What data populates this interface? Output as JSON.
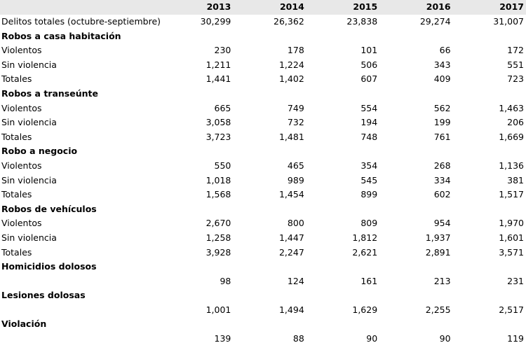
{
  "header": {
    "years": [
      "2013",
      "2014",
      "2015",
      "2016",
      "2017"
    ]
  },
  "rows": [
    {
      "type": "data",
      "label": "Delitos totales (octubre-septiembre)",
      "values": [
        "30,299",
        "26,362",
        "23,838",
        "29,274",
        "31,007"
      ]
    },
    {
      "type": "section",
      "label": "Robos a casa habitación"
    },
    {
      "type": "data",
      "label": "Violentos",
      "values": [
        "230",
        "178",
        "101",
        "66",
        "172"
      ]
    },
    {
      "type": "data",
      "label": "Sin violencia",
      "values": [
        "1,211",
        "1,224",
        "506",
        "343",
        "551"
      ]
    },
    {
      "type": "data",
      "label": "Totales",
      "values": [
        "1,441",
        "1,402",
        "607",
        "409",
        "723"
      ]
    },
    {
      "type": "section",
      "label": "Robos a transeúnte"
    },
    {
      "type": "data",
      "label": "Violentos",
      "values": [
        "665",
        "749",
        "554",
        "562",
        "1,463"
      ]
    },
    {
      "type": "data",
      "label": "Sin violencia",
      "values": [
        "3,058",
        "732",
        "194",
        "199",
        "206"
      ]
    },
    {
      "type": "data",
      "label": "Totales",
      "values": [
        "3,723",
        "1,481",
        "748",
        "761",
        "1,669"
      ]
    },
    {
      "type": "section",
      "label": "Robo a negocio"
    },
    {
      "type": "data",
      "label": "Violentos",
      "values": [
        "550",
        "465",
        "354",
        "268",
        "1,136"
      ]
    },
    {
      "type": "data",
      "label": "Sin violencia",
      "values": [
        "1,018",
        "989",
        "545",
        "334",
        "381"
      ]
    },
    {
      "type": "data",
      "label": "Totales",
      "values": [
        "1,568",
        "1,454",
        "899",
        "602",
        "1,517"
      ]
    },
    {
      "type": "section",
      "label": "Robos de vehículos"
    },
    {
      "type": "data",
      "label": "Violentos",
      "values": [
        "2,670",
        "800",
        "809",
        "954",
        "1,970"
      ]
    },
    {
      "type": "data",
      "label": "Sin violencia",
      "values": [
        "1,258",
        "1,447",
        "1,812",
        "1,937",
        "1,601"
      ]
    },
    {
      "type": "data",
      "label": "Totales",
      "values": [
        "3,928",
        "2,247",
        "2,621",
        "2,891",
        "3,571"
      ]
    },
    {
      "type": "section",
      "label": "Homicidios dolosos"
    },
    {
      "type": "data",
      "label": "",
      "values": [
        "98",
        "124",
        "161",
        "213",
        "231"
      ]
    },
    {
      "type": "section",
      "label": "Lesiones dolosas"
    },
    {
      "type": "data",
      "label": "",
      "values": [
        "1,001",
        "1,494",
        "1,629",
        "2,255",
        "2,517"
      ]
    },
    {
      "type": "section",
      "label": "Violación"
    },
    {
      "type": "data",
      "label": "",
      "values": [
        "139",
        "88",
        "90",
        "90",
        "119"
      ]
    }
  ]
}
